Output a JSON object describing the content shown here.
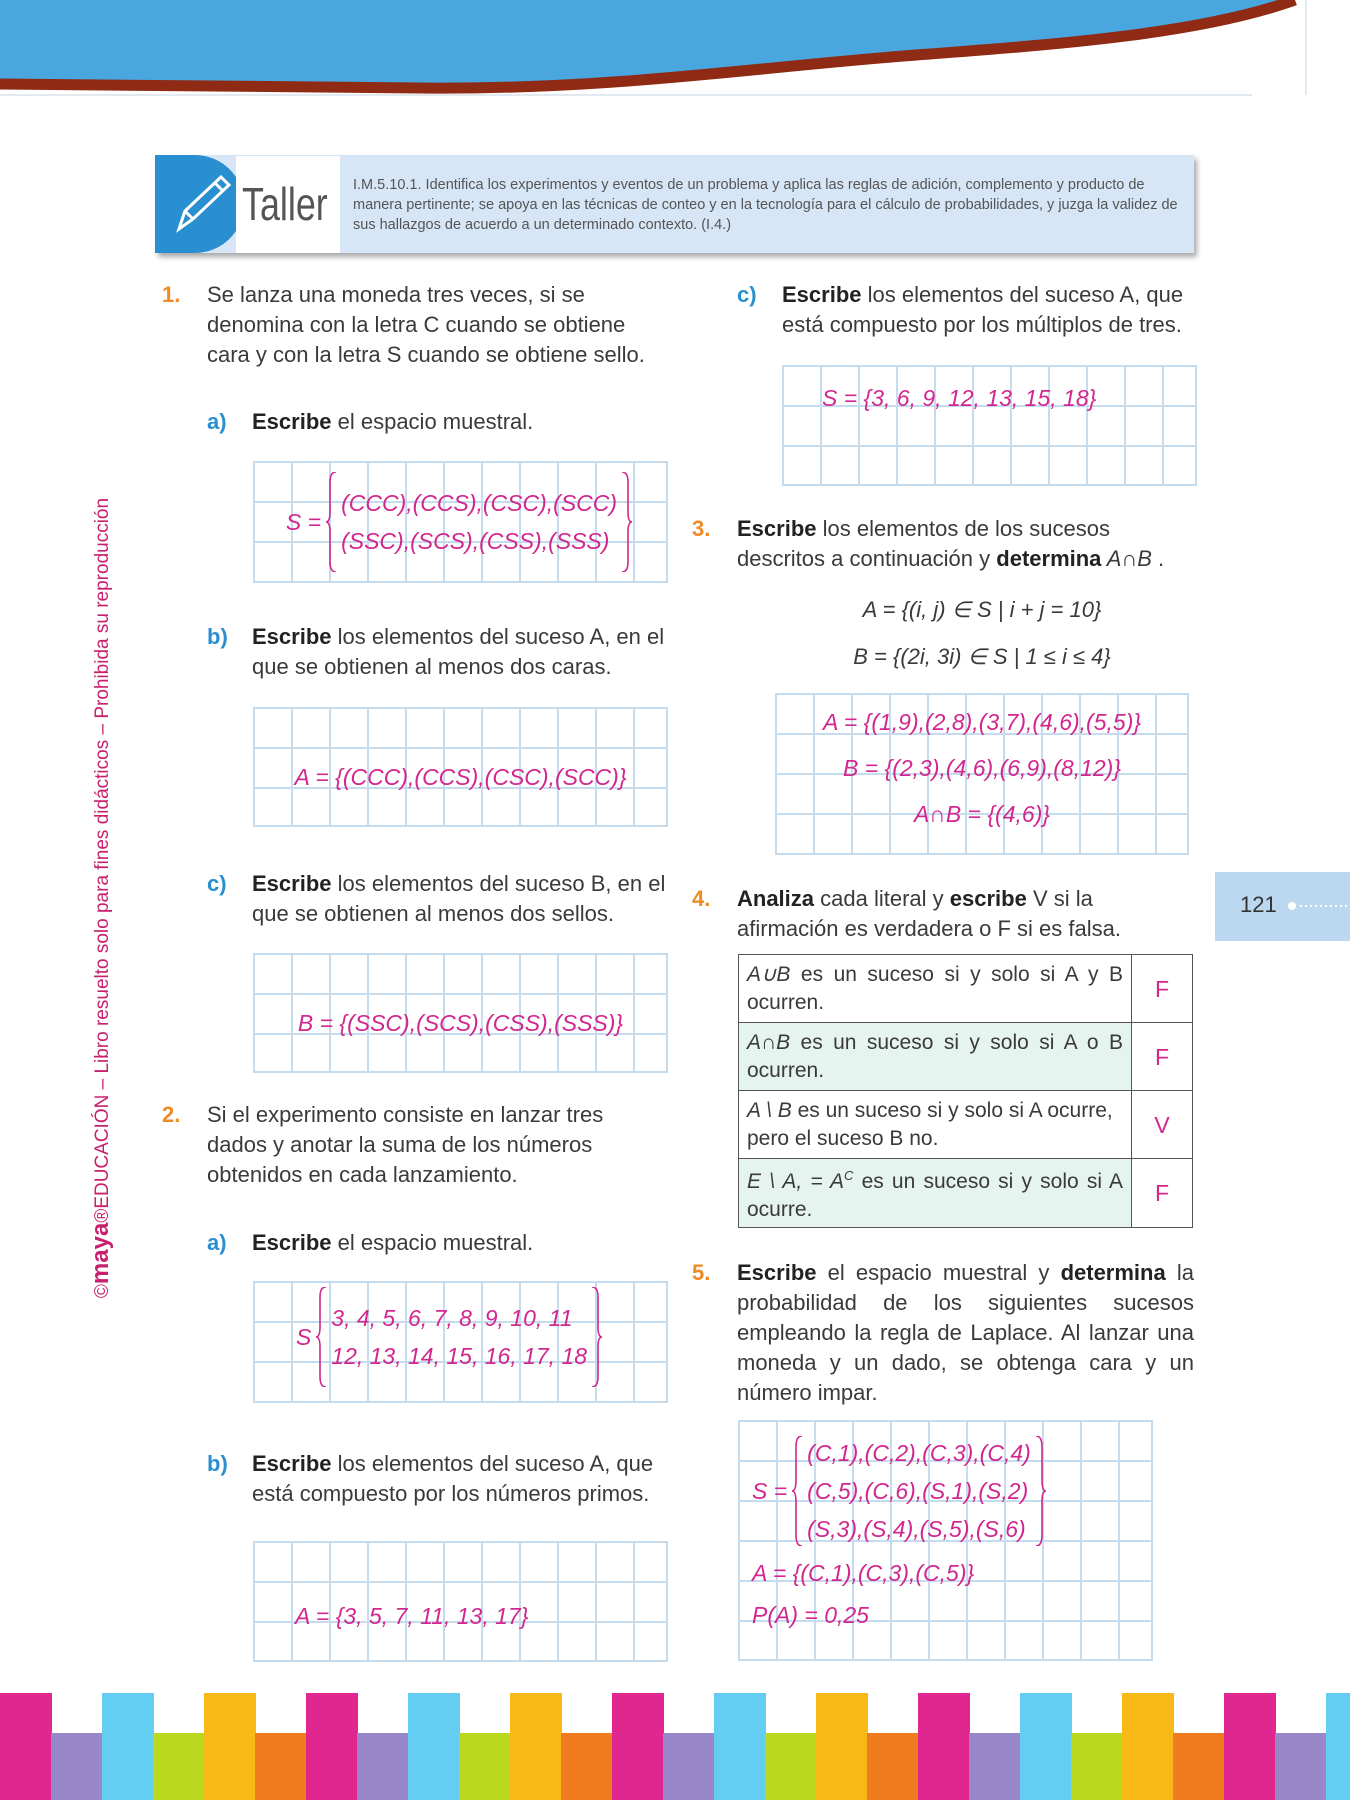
{
  "header": {
    "badge": "Taller",
    "objective": "I.M.5.10.1. Identifica los experimentos y eventos de un problema y aplica las reglas de adición, complemento y producto de manera pertinente; se apoya en las técnicas de conteo y en la tecnología para el cálculo de probabilidades, y juzga la validez de sus hallazgos de acuerdo a un determinado contexto. (I.4.)"
  },
  "sidebar": {
    "copyright": "©",
    "brand": "maya",
    "text": "®EDUCACIÓN – Libro resuelto solo para fines didácticos – Prohibida su reproducción"
  },
  "page_number": "121",
  "exercises": [
    {
      "number": "1.",
      "statement": [
        {
          "text": "Se lanza una moneda tres veces, si se denomina con la letra C cuando se obtiene cara y con la letra S cuando se obtiene sello."
        }
      ],
      "parts": [
        {
          "label": "a)",
          "prompt": [
            {
              "text": "Escribe",
              "bold": true
            },
            {
              "text": " el espacio muestral."
            }
          ],
          "answer": {
            "lead": "S =",
            "lines": [
              "(CCC),(CCS),(CSC),(SCC)",
              "(SSC),(SCS),(CSS),(SSS)"
            ]
          }
        },
        {
          "label": "b)",
          "prompt": [
            {
              "text": "Escribe",
              "bold": true
            },
            {
              "text": " los elementos del suceso A, en el que se obtienen al menos dos caras."
            }
          ],
          "answer": {
            "lines": [
              "A = {(CCC),(CCS),(CSC),(SCC)}"
            ]
          }
        },
        {
          "label": "c)",
          "prompt": [
            {
              "text": "Escribe",
              "bold": true
            },
            {
              "text": " los elementos del suceso B, en el que se obtienen al menos dos sellos."
            }
          ],
          "answer": {
            "lines": [
              "B = {(SSC),(SCS),(CSS),(SSS)}"
            ]
          }
        }
      ]
    },
    {
      "number": "2.",
      "statement": [
        {
          "text": "Si el experimento consiste en lanzar tres dados y anotar la suma de los números obtenidos en cada lanzamiento."
        }
      ],
      "parts": [
        {
          "label": "a)",
          "prompt": [
            {
              "text": "Escribe",
              "bold": true
            },
            {
              "text": " el espacio muestral."
            }
          ],
          "answer": {
            "lead": "S",
            "lines": [
              "3, 4, 5, 6, 7, 8, 9, 10, 11",
              "12, 13, 14, 15, 16, 17, 18"
            ]
          }
        },
        {
          "label": "b)",
          "prompt": [
            {
              "text": "Escribe",
              "bold": true
            },
            {
              "text": " los elementos del suceso A, que está compuesto por los números primos."
            }
          ],
          "answer": {
            "lines": [
              "A = {3, 5, 7, 11, 13, 17}"
            ]
          }
        },
        {
          "label": "c)",
          "prompt": [
            {
              "text": "Escribe",
              "bold": true
            },
            {
              "text": " los elementos del suceso A, que está compuesto por los múltiplos de tres."
            }
          ],
          "answer": {
            "lines": [
              "S = {3, 6, 9, 12, 13, 15, 18}"
            ]
          }
        }
      ]
    },
    {
      "number": "3.",
      "statement": [
        {
          "text": "Escribe",
          "bold": true
        },
        {
          "text": " los elementos de los sucesos descritos a continuación y "
        },
        {
          "text": "determina",
          "bold": true
        },
        {
          "text": " A∩B",
          "italic": true
        },
        {
          "text": " ."
        }
      ],
      "definitions": [
        "A = {(i, j) ∈ S | i + j = 10}",
        "B = {(2i, 3i) ∈ S | 1 ≤ i ≤ 4}"
      ],
      "answer": {
        "lines": [
          "A = {(1,9),(2,8),(3,7),(4,6),(5,5)}",
          "B = {(2,3),(4,6),(6,9),(8,12)}",
          "A∩B = {(4,6)}"
        ]
      }
    },
    {
      "number": "4.",
      "statement": [
        {
          "text": "Analiza",
          "bold": true
        },
        {
          "text": " cada literal y "
        },
        {
          "text": "escribe",
          "bold": true
        },
        {
          "text": " V si la afirmación es verdadera o F si es falsa."
        }
      ],
      "table": [
        {
          "math": "A∪B",
          "text": " es un suceso si y solo si A y B ocurren.",
          "answer": "F"
        },
        {
          "math": "A∩B",
          "text": " es un suceso si y solo si A o B ocurren.",
          "answer": "F"
        },
        {
          "math": "A \\ B",
          "text": " es un suceso si y solo si A ocurre, pero el suceso B no.",
          "answer": "V"
        },
        {
          "math": "E \\ A, = A",
          "sup": "C",
          "text": " es un suceso si y solo si A ocurre.",
          "answer": "F"
        }
      ]
    },
    {
      "number": "5.",
      "statement": [
        {
          "text": "Escribe",
          "bold": true
        },
        {
          "text": " el espacio muestral y "
        },
        {
          "text": "determina",
          "bold": true
        },
        {
          "text": " la probabilidad de los siguientes sucesos empleando la regla de Laplace. Al lanzar una moneda y un dado, se obtenga cara y un número impar."
        }
      ],
      "answer": {
        "lead": "S =",
        "lines": [
          "(C,1),(C,2),(C,3),(C,4)",
          "(C,5),(C,6),(S,1),(S,2)",
          "(S,3),(S,4),(S,5),(S,6)"
        ],
        "extra": [
          "A = {(C,1),(C,3),(C,5)}",
          "P(A) = 0,25"
        ]
      }
    }
  ]
}
